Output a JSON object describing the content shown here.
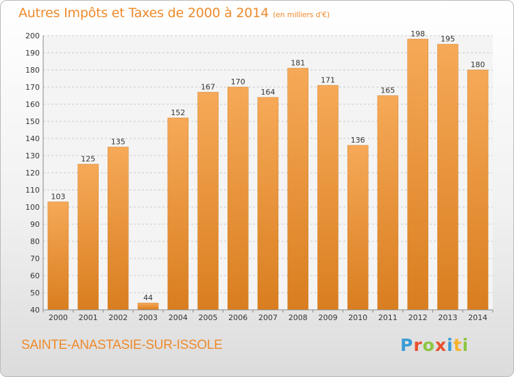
{
  "header": {
    "title": "Autres Impôts et Taxes de 2000 à 2014",
    "unit": "(en milliers d'€)"
  },
  "footer": {
    "commune": "SAINTE-ANASTASIE-SUR-ISSOLE",
    "logo_letters": [
      "P",
      "r",
      "o",
      "x",
      "i",
      "t",
      "i"
    ],
    "logo_colors": [
      "#3a9bd6",
      "#e94f2e",
      "#8cc63f",
      "#e94f2e",
      "#3a9bd6",
      "#f7b22c",
      "#8cc63f"
    ]
  },
  "colors": {
    "bar": "#ef9a3e",
    "bar_light": "#f6a957",
    "bar_dark": "#d97e20",
    "grid": "#c8c8c8",
    "text": "#333333"
  },
  "chart_data": {
    "type": "bar",
    "title": "Autres Impôts et Taxes de 2000 à 2014",
    "categories": [
      "2000",
      "2001",
      "2002",
      "2003",
      "2004",
      "2005",
      "2006",
      "2007",
      "2008",
      "2009",
      "2010",
      "2011",
      "2012",
      "2013",
      "2014"
    ],
    "values": [
      103,
      125,
      135,
      44,
      152,
      167,
      170,
      164,
      181,
      171,
      136,
      165,
      198,
      195,
      180
    ],
    "ylim": [
      40,
      200
    ],
    "yticks": [
      40,
      50,
      60,
      70,
      80,
      90,
      100,
      110,
      120,
      130,
      140,
      150,
      160,
      170,
      180,
      190,
      200
    ],
    "grid": true,
    "data_labels": true
  }
}
